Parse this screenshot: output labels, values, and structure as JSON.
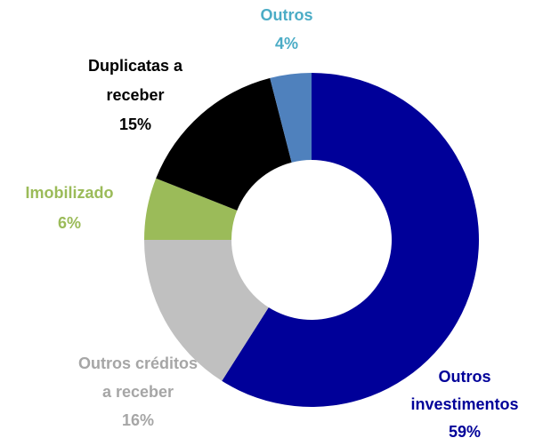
{
  "chart_data": {
    "type": "donut",
    "categories": [
      "Outros investimentos",
      "Outros créditos a receber",
      "Imobilizado",
      "Duplicatas a receber",
      "Outros"
    ],
    "values": [
      59,
      16,
      6,
      15,
      4
    ],
    "value_labels": [
      "59%",
      "16%",
      "6%",
      "15%",
      "4%"
    ],
    "colors": [
      "#000099",
      "#c0c0c0",
      "#9bbb59",
      "#000000",
      "#4f81bd"
    ],
    "label_colors": [
      "#000099",
      "#a6a6a6",
      "#9bbb59",
      "#000000",
      "#4bacc6"
    ]
  }
}
